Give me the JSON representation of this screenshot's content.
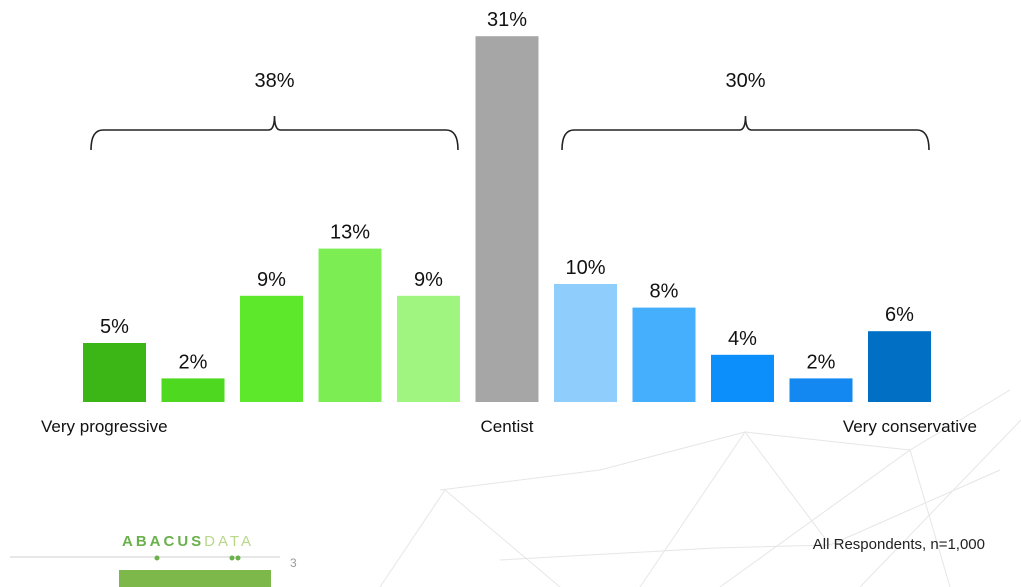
{
  "chart_data": {
    "type": "bar",
    "categories": [
      "Very progressive",
      "",
      "",
      "",
      "",
      "Centist",
      "",
      "",
      "",
      "",
      "Very conservative"
    ],
    "values": [
      5,
      2,
      9,
      13,
      9,
      31,
      10,
      8,
      4,
      2,
      6
    ],
    "value_labels": [
      "5%",
      "2%",
      "9%",
      "13%",
      "9%",
      "31%",
      "10%",
      "8%",
      "4%",
      "2%",
      "6%"
    ],
    "colors": [
      "#3cb516",
      "#4ed81f",
      "#5ee82c",
      "#7cee54",
      "#9ff580",
      "#a6a6a6",
      "#8fcdfd",
      "#45aefd",
      "#0c8ffa",
      "#1388f0",
      "#006fc4"
    ],
    "groups": [
      {
        "label": "38%",
        "from": 0,
        "to": 4
      },
      {
        "label": "30%",
        "from": 6,
        "to": 10
      }
    ],
    "grid": false,
    "legend": "none",
    "ylim": [
      0,
      31
    ]
  },
  "footnote": "All Respondents, n=1,000",
  "page_number": "3",
  "logo": {
    "part1": "ABACUS",
    "part2": "DATA"
  }
}
